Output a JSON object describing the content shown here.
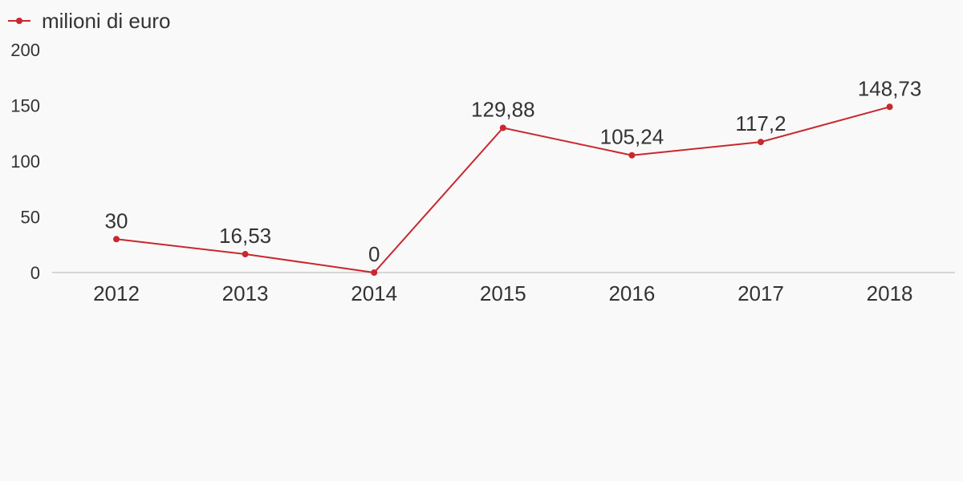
{
  "chart_data": {
    "type": "line",
    "title": "",
    "xlabel": "",
    "ylabel": "",
    "categories": [
      "2012",
      "2013",
      "2014",
      "2015",
      "2016",
      "2017",
      "2018"
    ],
    "series": [
      {
        "name": "milioni di euro",
        "values": [
          30,
          16.53,
          0,
          129.88,
          105.24,
          117.2,
          148.73
        ],
        "data_labels": [
          "30",
          "16,53",
          "0",
          "129,88",
          "105,24",
          "117,2",
          "148,73"
        ],
        "color": "#c8282e"
      }
    ],
    "ylim": [
      0,
      200
    ],
    "yticks": [
      "0",
      "50",
      "100",
      "150",
      "200"
    ],
    "grid": false,
    "legend_position": "top-left",
    "baseline_color": "#d6d6d6"
  }
}
